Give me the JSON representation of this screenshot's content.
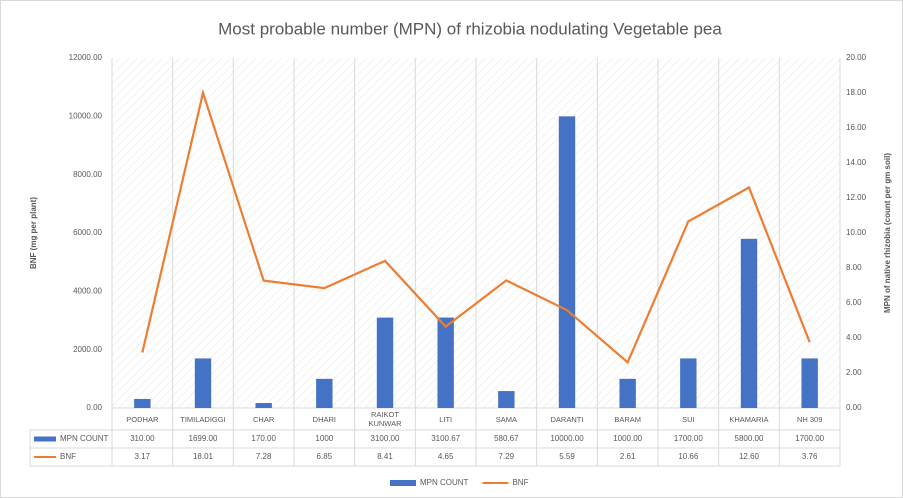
{
  "chart_data": {
    "type": "bar-line",
    "title": "Most probable number (MPN) of rhizobia nodulating Vegetable pea",
    "y_label": "BNF (mg per plant)",
    "y2_label": "MPN of native rhizobia (count per gm soil)",
    "categories": [
      "PODHAR",
      "TIMILADIGGI",
      "CHAR",
      "DHARI",
      "RAIKOT KUNWAR",
      "LITI",
      "SAMA",
      "DARANTI",
      "BARAM",
      "SUI",
      "KHAMARIA",
      "NH 309"
    ],
    "series": [
      {
        "name": "MPN COUNT",
        "color": "#4472c4",
        "type": "bar",
        "values": [
          310,
          1699,
          170,
          1000,
          3100,
          3100.67,
          580.67,
          10000,
          1000,
          1700,
          5800,
          1700
        ],
        "value_labels": [
          "310.00",
          "1699.00",
          "170.00",
          "1000",
          "3100.00",
          "3100.67",
          "580.67",
          "10000.00",
          "1000.00",
          "1700.00",
          "5800.00",
          "1700.00"
        ]
      },
      {
        "name": "BNF",
        "color": "#ed7d31",
        "type": "line",
        "axis": "y2",
        "values": [
          3.17,
          18.01,
          7.28,
          6.85,
          8.41,
          4.65,
          7.29,
          5.59,
          2.61,
          10.66,
          12.6,
          3.76
        ],
        "value_labels": [
          "3.17",
          "18.01",
          "7.28",
          "6.85",
          "8.41",
          "4.65",
          "7.29",
          "5.59",
          "2.61",
          "10.66",
          "12.60",
          "3.76"
        ]
      }
    ],
    "ylim": [
      0,
      12000
    ],
    "yticks": [
      {
        "value": 0,
        "label": "0.00"
      },
      {
        "value": 2000,
        "label": "2000.00"
      },
      {
        "value": 4000,
        "label": "4000.00"
      },
      {
        "value": 6000,
        "label": "6000.00"
      },
      {
        "value": 8000,
        "label": "8000.00"
      },
      {
        "value": 10000,
        "label": "10000.00"
      },
      {
        "value": 12000,
        "label": "12000.00"
      }
    ],
    "y2lim": [
      0,
      20
    ],
    "y2ticks": [
      {
        "value": 0,
        "label": "0.00"
      },
      {
        "value": 2,
        "label": "2.00"
      },
      {
        "value": 4,
        "label": "4.00"
      },
      {
        "value": 6,
        "label": "6.00"
      },
      {
        "value": 8,
        "label": "8.00"
      },
      {
        "value": 10,
        "label": "10.00"
      },
      {
        "value": 12,
        "label": "12.00"
      },
      {
        "value": 14,
        "label": "14.00"
      },
      {
        "value": 16,
        "label": "16.00"
      },
      {
        "value": 18,
        "label": "18.00"
      },
      {
        "value": 20,
        "label": "20.00"
      }
    ],
    "legend": "bottom"
  }
}
